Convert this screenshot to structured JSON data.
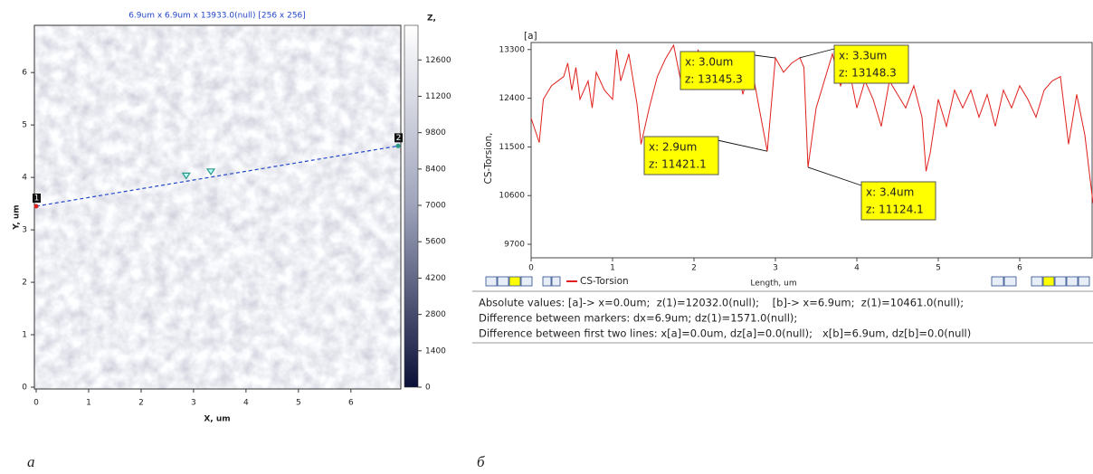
{
  "chart_data": [
    {
      "type": "heatmap",
      "title": "6.9um x 6.9um x 13933.0(null) [256 x 256]",
      "x_label": "X, um",
      "y_label": "Y, um",
      "colorbar_label": "Z,",
      "xlim": [
        0,
        6.9
      ],
      "ylim": [
        0,
        6.9
      ],
      "xticks": [
        0,
        1,
        2,
        3,
        4,
        5,
        6
      ],
      "yticks": [
        0,
        1,
        2,
        3,
        4,
        5,
        6
      ],
      "zlim": [
        0,
        13933
      ],
      "zticks": [
        0,
        1400,
        2800,
        4200,
        5600,
        7000,
        8400,
        9800,
        11200,
        12600
      ],
      "colormap": [
        "#ffffff",
        "#9ea3bb",
        "#0b1038"
      ],
      "profile": {
        "x": [
          0,
          6.9
        ],
        "y": [
          3.45,
          4.6
        ],
        "color": "#2347c8"
      },
      "profile_labels": [
        "1",
        "2"
      ],
      "markers_x": [
        2.86,
        3.33
      ],
      "marker_color": "#2a9a86"
    },
    {
      "type": "line",
      "x_label": "Length, um",
      "y_label": "CS-Torsion,",
      "cursor_label": "[a]",
      "xlim": [
        0,
        6.9
      ],
      "ylim": [
        9450,
        13430
      ],
      "xticks": [
        0,
        1,
        2,
        3,
        4,
        5,
        6
      ],
      "yticks": [
        9700,
        10600,
        11500,
        12400,
        13300
      ],
      "x": [
        0,
        0.1,
        0.15,
        0.25,
        0.4,
        0.45,
        0.5,
        0.55,
        0.6,
        0.7,
        0.75,
        0.8,
        0.9,
        1.0,
        1.05,
        1.1,
        1.2,
        1.3,
        1.35,
        1.45,
        1.55,
        1.65,
        1.75,
        1.85,
        1.95,
        2.0,
        2.05,
        2.15,
        2.25,
        2.35,
        2.45,
        2.55,
        2.6,
        2.7,
        2.8,
        2.9,
        3.0,
        3.1,
        3.2,
        3.3,
        3.35,
        3.4,
        3.5,
        3.6,
        3.7,
        3.8,
        3.9,
        4.0,
        4.1,
        4.2,
        4.3,
        4.4,
        4.5,
        4.6,
        4.7,
        4.8,
        4.85,
        4.9,
        5.0,
        5.1,
        5.2,
        5.3,
        5.4,
        5.5,
        5.6,
        5.7,
        5.8,
        5.9,
        6.0,
        6.1,
        6.2,
        6.3,
        6.4,
        6.5,
        6.6,
        6.7,
        6.8,
        6.9
      ],
      "series": [
        {
          "name": "CS-Torsion",
          "color": "#e0201c",
          "values": [
            12032,
            11580,
            12380,
            12630,
            12800,
            13050,
            12550,
            12970,
            12380,
            12720,
            12220,
            12880,
            12550,
            12380,
            13300,
            12720,
            13220,
            12300,
            11550,
            12220,
            12800,
            13130,
            13380,
            12630,
            13130,
            12550,
            13300,
            12630,
            13050,
            12720,
            13220,
            12880,
            12470,
            13050,
            12220,
            11421.1,
            13145.3,
            12880,
            13050,
            13148.3,
            12970,
            11124.1,
            12220,
            12720,
            13220,
            12630,
            12970,
            12220,
            12720,
            12380,
            11880,
            12720,
            12470,
            12220,
            12630,
            12050,
            11050,
            11380,
            12380,
            11880,
            12550,
            12220,
            12550,
            12050,
            12470,
            11880,
            12550,
            12220,
            12630,
            12380,
            12050,
            12550,
            12720,
            12800,
            11550,
            12470,
            11720,
            10461
          ]
        }
      ],
      "annotations": [
        {
          "x_text": "x: 3.0um",
          "z_text": "z: 13145.3",
          "x": 3.0,
          "z": 13145.3
        },
        {
          "x_text": "x: 3.3um",
          "z_text": "z: 13148.3",
          "x": 3.3,
          "z": 13148.3
        },
        {
          "x_text": "x: 2.9um",
          "z_text": "z: 11421.1",
          "x": 2.9,
          "z": 11421.1
        },
        {
          "x_text": "x: 3.4um",
          "z_text": "z: 11124.1",
          "x": 3.4,
          "z": 11124.1
        }
      ],
      "info": [
        "Absolute values: [a]-> x=0.0um;  z(1)=12032.0(null);    [b]-> x=6.9um;  z(1)=10461.0(null);",
        "Difference between markers: dx=6.9um; dz(1)=1571.0(null);",
        "Difference between first two lines: x[a]=0.0um, dz[a]=0.0(null);   x[b]=6.9um, dz[b]=0.0(null)"
      ]
    }
  ],
  "captions": [
    "а",
    "б"
  ]
}
